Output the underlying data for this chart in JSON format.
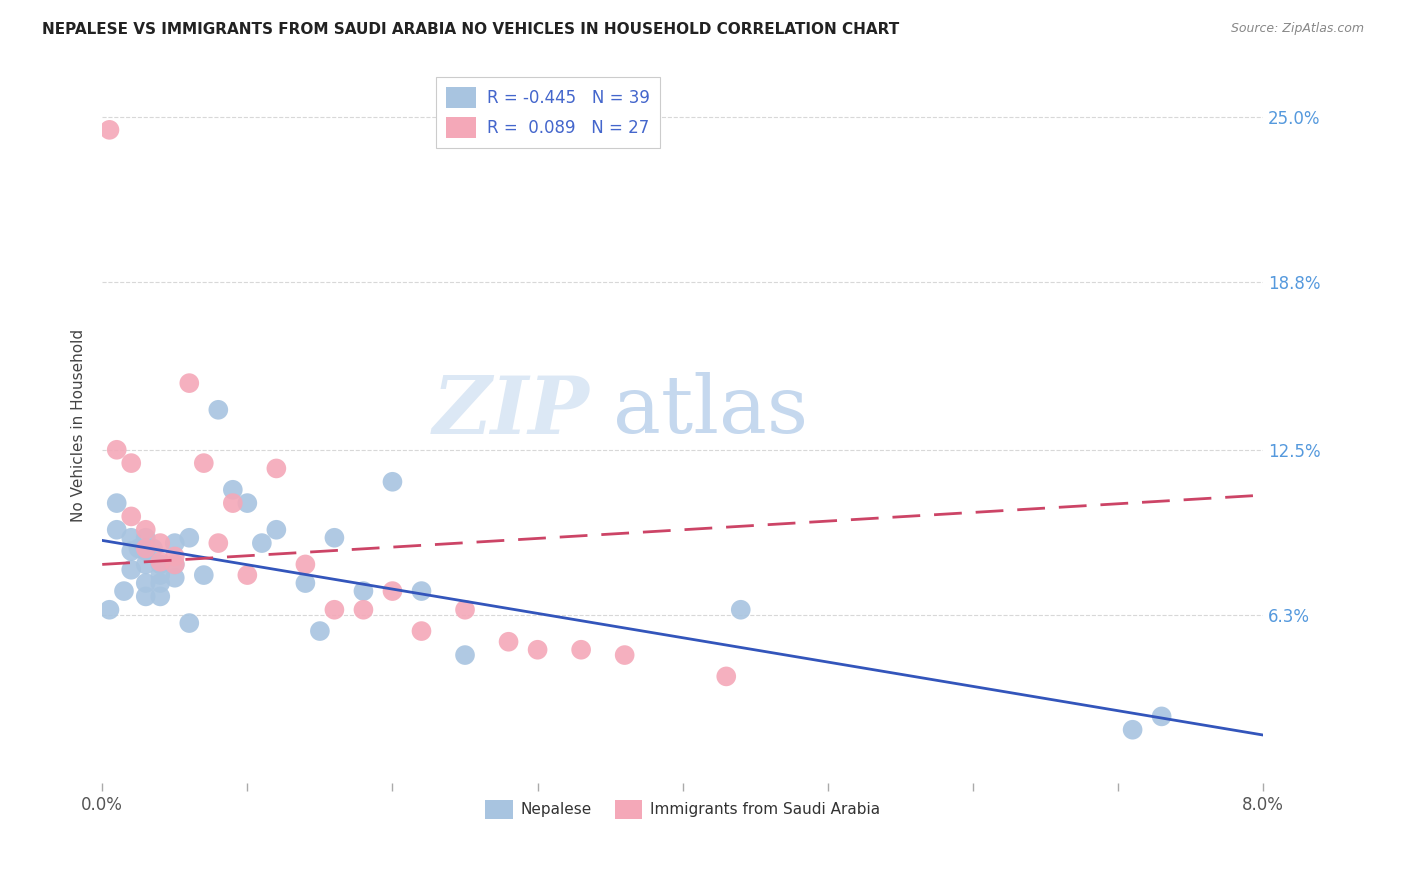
{
  "title": "NEPALESE VS IMMIGRANTS FROM SAUDI ARABIA NO VEHICLES IN HOUSEHOLD CORRELATION CHART",
  "source": "Source: ZipAtlas.com",
  "ylabel": "No Vehicles in Household",
  "ytick_labels": [
    "25.0%",
    "18.8%",
    "12.5%",
    "6.3%"
  ],
  "ytick_values": [
    0.25,
    0.188,
    0.125,
    0.063
  ],
  "xlim": [
    0.0,
    0.08
  ],
  "ylim": [
    0.0,
    0.268
  ],
  "legend1_r": -0.445,
  "legend1_n": 39,
  "legend2_r": 0.089,
  "legend2_n": 27,
  "nepalese_color": "#a8c4e0",
  "saudi_color": "#f4a8b8",
  "nepalese_line_color": "#3355bb",
  "saudi_line_color": "#cc4466",
  "watermark_zip": "ZIP",
  "watermark_atlas": "atlas",
  "background_color": "#ffffff",
  "grid_color": "#d8d8d8",
  "nepalese_x": [
    0.0005,
    0.001,
    0.001,
    0.0015,
    0.002,
    0.002,
    0.002,
    0.0025,
    0.003,
    0.003,
    0.003,
    0.003,
    0.003,
    0.0035,
    0.004,
    0.004,
    0.004,
    0.004,
    0.005,
    0.005,
    0.005,
    0.006,
    0.006,
    0.007,
    0.008,
    0.009,
    0.01,
    0.011,
    0.012,
    0.014,
    0.015,
    0.016,
    0.018,
    0.02,
    0.022,
    0.025,
    0.044,
    0.071,
    0.073
  ],
  "nepalese_y": [
    0.065,
    0.105,
    0.095,
    0.072,
    0.092,
    0.087,
    0.08,
    0.088,
    0.092,
    0.087,
    0.082,
    0.075,
    0.07,
    0.088,
    0.082,
    0.078,
    0.075,
    0.07,
    0.09,
    0.082,
    0.077,
    0.092,
    0.06,
    0.078,
    0.14,
    0.11,
    0.105,
    0.09,
    0.095,
    0.075,
    0.057,
    0.092,
    0.072,
    0.113,
    0.072,
    0.048,
    0.065,
    0.02,
    0.025
  ],
  "saudi_x": [
    0.0005,
    0.001,
    0.002,
    0.002,
    0.003,
    0.003,
    0.004,
    0.004,
    0.005,
    0.005,
    0.006,
    0.007,
    0.008,
    0.009,
    0.01,
    0.012,
    0.014,
    0.016,
    0.018,
    0.02,
    0.022,
    0.025,
    0.028,
    0.03,
    0.033,
    0.036,
    0.043
  ],
  "saudi_y": [
    0.245,
    0.125,
    0.12,
    0.1,
    0.095,
    0.088,
    0.09,
    0.083,
    0.085,
    0.082,
    0.15,
    0.12,
    0.09,
    0.105,
    0.078,
    0.118,
    0.082,
    0.065,
    0.065,
    0.072,
    0.057,
    0.065,
    0.053,
    0.05,
    0.05,
    0.048,
    0.04
  ]
}
